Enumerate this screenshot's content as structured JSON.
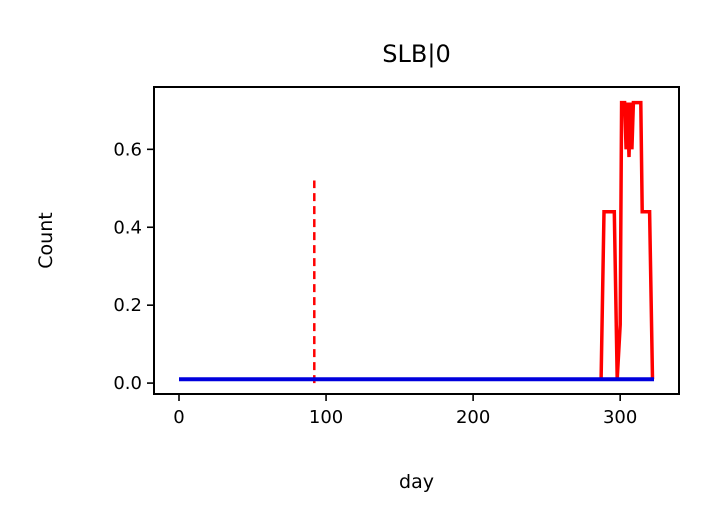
{
  "chart_data": {
    "type": "line",
    "title": "SLB|0",
    "xlabel": "day",
    "ylabel": "Count",
    "xlim": [
      -17,
      340
    ],
    "ylim": [
      -0.028,
      0.76
    ],
    "xticks": [
      0,
      100,
      200,
      300
    ],
    "xtick_labels": [
      "0",
      "100",
      "200",
      "300"
    ],
    "yticks": [
      0.0,
      0.2,
      0.4,
      0.6
    ],
    "ytick_labels": [
      "0.0",
      "0.2",
      "0.4",
      "0.6"
    ],
    "grid": false,
    "series": [
      {
        "color": "#ff0000",
        "style": "solid",
        "x": [
          287,
          289,
          292,
          296,
          298,
          300,
          301,
          303,
          304,
          305,
          306,
          307,
          308,
          309,
          310,
          312,
          314,
          315,
          316,
          318,
          320,
          322
        ],
        "y": [
          0.01,
          0.44,
          0.44,
          0.44,
          0.01,
          0.15,
          0.72,
          0.72,
          0.6,
          0.72,
          0.58,
          0.72,
          0.6,
          0.72,
          0.72,
          0.72,
          0.72,
          0.44,
          0.44,
          0.44,
          0.44,
          0.01
        ]
      },
      {
        "color": "#0000dd",
        "style": "solid",
        "x": [
          0,
          323
        ],
        "y": [
          0.01,
          0.01
        ]
      }
    ],
    "vlines": [
      {
        "x": 92,
        "y0": 0.0,
        "y1": 0.52,
        "color": "#ff0000",
        "style": "dashed"
      }
    ]
  }
}
